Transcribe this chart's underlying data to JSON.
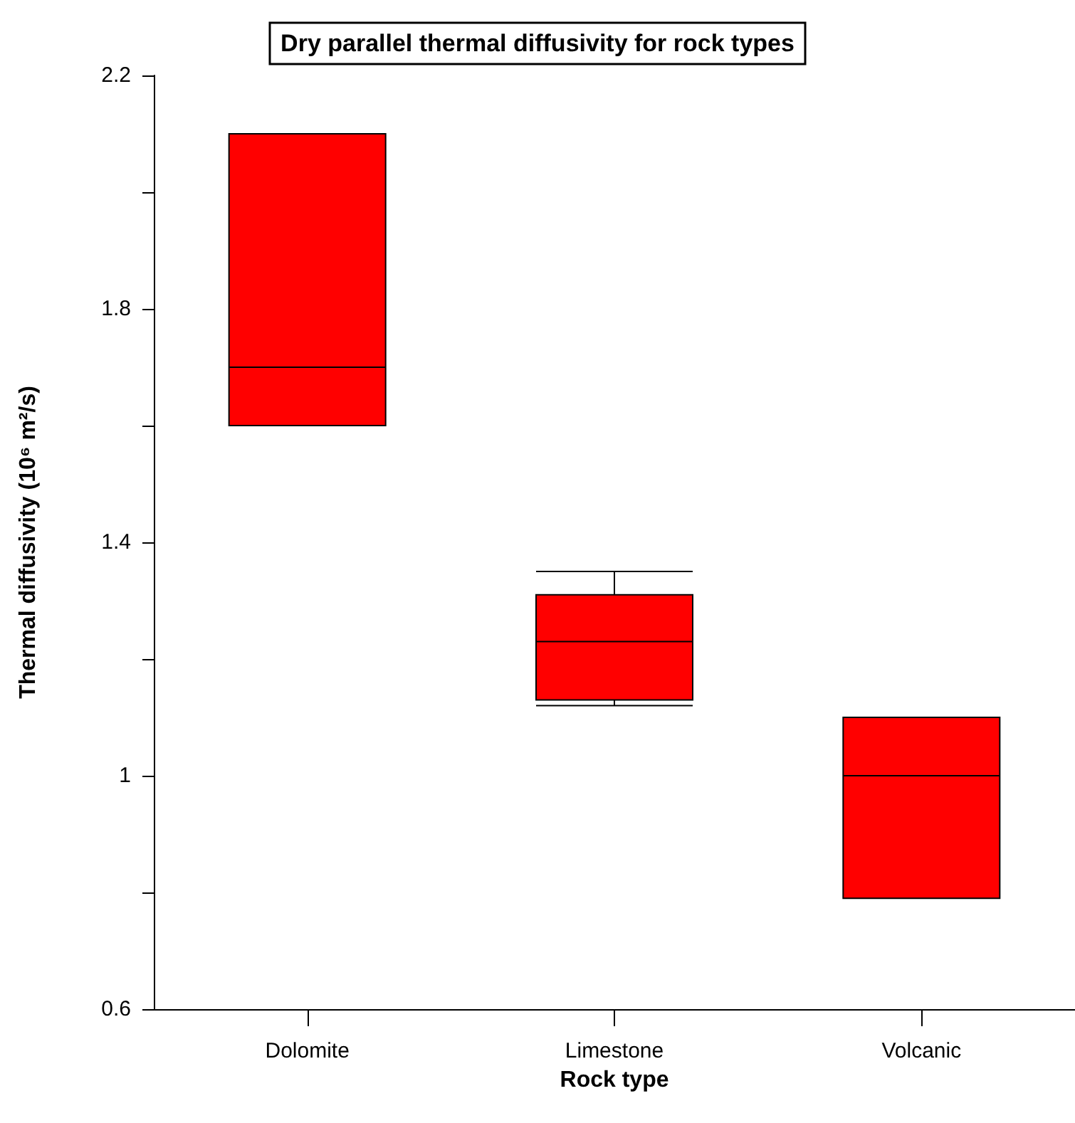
{
  "chart_data": {
    "type": "box",
    "title": "Dry parallel thermal diffusivity for rock types",
    "xlabel": "Rock type",
    "ylabel": "Thermal diffusivity (10⁶ m²/s)",
    "categories": [
      "Dolomite",
      "Limestone",
      "Volcanic"
    ],
    "color": "#ff0000",
    "boxes": [
      {
        "low": 1.6,
        "q1": 1.6,
        "median": 1.7,
        "q3": 2.1,
        "high": 2.1
      },
      {
        "low": 1.12,
        "q1": 1.13,
        "median": 1.23,
        "q3": 1.31,
        "high": 1.35
      },
      {
        "low": 0.79,
        "q1": 0.79,
        "median": 1.0,
        "q3": 1.1,
        "high": 1.1
      }
    ],
    "ylim": [
      0.6,
      2.2
    ],
    "yticks": [
      0.6,
      {
        "value": 0.8,
        "label": null
      },
      1,
      {
        "value": 1.2,
        "label": null
      },
      1.4,
      {
        "value": 1.6,
        "label": null
      },
      1.8,
      {
        "value": 2.0,
        "label": null
      },
      2.2
    ],
    "grid": false
  }
}
